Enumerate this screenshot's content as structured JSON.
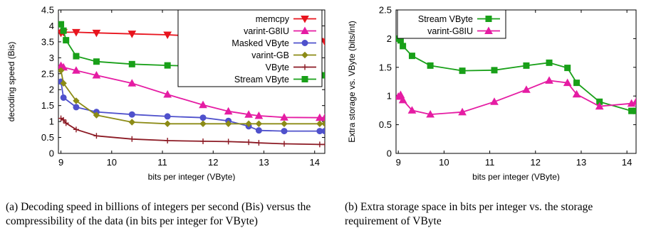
{
  "chart_data": [
    {
      "type": "line",
      "xlabel": "bits per integer (VByte)",
      "ylabel": "decoding speed (Bis)",
      "xlim": [
        8.95,
        14.2
      ],
      "ylim": [
        0,
        4.5
      ],
      "x_ticks": [
        "9",
        "10",
        "11",
        "12",
        "13",
        "14"
      ],
      "y_ticks": [
        "0",
        "0.5",
        "1",
        "1.5",
        "2",
        "2.5",
        "3",
        "3.5",
        "4",
        "4.5"
      ],
      "grid": false,
      "legend_position": "top-right",
      "series": [
        {
          "name": "memcpy",
          "color": "#e8141e",
          "marker": "triangle-down",
          "points": [
            [
              9.0,
              3.78
            ],
            [
              9.05,
              3.8
            ],
            [
              9.3,
              3.8
            ],
            [
              9.7,
              3.78
            ],
            [
              10.4,
              3.75
            ],
            [
              11.1,
              3.72
            ],
            [
              11.8,
              3.67
            ],
            [
              12.3,
              3.65
            ],
            [
              12.7,
              3.62
            ],
            [
              12.9,
              3.6
            ],
            [
              13.4,
              3.57
            ],
            [
              14.1,
              3.52
            ],
            [
              14.2,
              3.5
            ]
          ]
        },
        {
          "name": "varint-G8IU",
          "color": "#e51ca3",
          "marker": "triangle-up",
          "points": [
            [
              9.0,
              2.75
            ],
            [
              9.05,
              2.7
            ],
            [
              9.3,
              2.6
            ],
            [
              9.7,
              2.45
            ],
            [
              10.4,
              2.2
            ],
            [
              11.1,
              1.85
            ],
            [
              11.8,
              1.52
            ],
            [
              12.3,
              1.32
            ],
            [
              12.7,
              1.22
            ],
            [
              12.9,
              1.18
            ],
            [
              13.4,
              1.13
            ],
            [
              14.1,
              1.12
            ],
            [
              14.2,
              1.12
            ]
          ]
        },
        {
          "name": "Masked VByte",
          "color": "#4f51cc",
          "marker": "circle",
          "points": [
            [
              9.0,
              2.25
            ],
            [
              9.05,
              1.75
            ],
            [
              9.3,
              1.45
            ],
            [
              9.7,
              1.3
            ],
            [
              10.4,
              1.22
            ],
            [
              11.1,
              1.16
            ],
            [
              11.8,
              1.12
            ],
            [
              12.3,
              1.02
            ],
            [
              12.7,
              0.85
            ],
            [
              12.9,
              0.72
            ],
            [
              13.4,
              0.7
            ],
            [
              14.1,
              0.7
            ],
            [
              14.2,
              0.7
            ]
          ]
        },
        {
          "name": "varint-GB",
          "color": "#8c8b16",
          "marker": "diamond",
          "points": [
            [
              9.0,
              2.6
            ],
            [
              9.05,
              2.2
            ],
            [
              9.3,
              1.65
            ],
            [
              9.7,
              1.2
            ],
            [
              10.4,
              0.98
            ],
            [
              11.1,
              0.93
            ],
            [
              11.8,
              0.93
            ],
            [
              12.3,
              0.93
            ],
            [
              12.7,
              0.93
            ],
            [
              12.9,
              0.93
            ],
            [
              13.4,
              0.93
            ],
            [
              14.1,
              0.93
            ],
            [
              14.2,
              0.93
            ]
          ]
        },
        {
          "name": "VByte",
          "color": "#8c1a24",
          "marker": "plus",
          "points": [
            [
              9.0,
              1.1
            ],
            [
              9.05,
              1.05
            ],
            [
              9.1,
              0.95
            ],
            [
              9.3,
              0.75
            ],
            [
              9.7,
              0.55
            ],
            [
              10.4,
              0.45
            ],
            [
              11.1,
              0.4
            ],
            [
              11.8,
              0.38
            ],
            [
              12.3,
              0.37
            ],
            [
              12.7,
              0.35
            ],
            [
              12.9,
              0.33
            ],
            [
              13.4,
              0.3
            ],
            [
              14.1,
              0.28
            ],
            [
              14.2,
              0.28
            ]
          ]
        },
        {
          "name": "Stream VByte",
          "color": "#19a019",
          "marker": "square",
          "points": [
            [
              9.0,
              4.05
            ],
            [
              9.05,
              3.85
            ],
            [
              9.1,
              3.55
            ],
            [
              9.3,
              3.05
            ],
            [
              9.7,
              2.88
            ],
            [
              10.4,
              2.8
            ],
            [
              11.1,
              2.76
            ],
            [
              11.8,
              2.73
            ],
            [
              12.3,
              2.73
            ],
            [
              12.7,
              2.7
            ],
            [
              12.9,
              2.62
            ],
            [
              13.4,
              2.52
            ],
            [
              14.1,
              2.45
            ],
            [
              14.2,
              2.45
            ]
          ]
        }
      ]
    },
    {
      "type": "line",
      "xlabel": "bits per integer (VByte)",
      "ylabel": "Extra storage vs. VByte  (bits/int)",
      "xlim": [
        8.95,
        14.2
      ],
      "ylim": [
        0,
        2.5
      ],
      "x_ticks": [
        "9",
        "10",
        "11",
        "12",
        "13",
        "14"
      ],
      "y_ticks": [
        "0",
        "0.5",
        "1",
        "1.5",
        "2",
        "2.5"
      ],
      "grid": false,
      "legend_position": "top-left",
      "series": [
        {
          "name": "Stream VByte",
          "color": "#19a019",
          "marker": "square",
          "points": [
            [
              9.0,
              2.0
            ],
            [
              9.05,
              1.97
            ],
            [
              9.1,
              1.87
            ],
            [
              9.3,
              1.7
            ],
            [
              9.7,
              1.53
            ],
            [
              10.4,
              1.44
            ],
            [
              11.1,
              1.45
            ],
            [
              11.8,
              1.53
            ],
            [
              12.3,
              1.58
            ],
            [
              12.7,
              1.49
            ],
            [
              12.9,
              1.23
            ],
            [
              13.4,
              0.9
            ],
            [
              14.1,
              0.74
            ],
            [
              14.2,
              0.74
            ]
          ]
        },
        {
          "name": "varint-G8IU",
          "color": "#e51ca3",
          "marker": "triangle-up",
          "points": [
            [
              9.0,
              0.99
            ],
            [
              9.05,
              1.02
            ],
            [
              9.1,
              0.93
            ],
            [
              9.3,
              0.75
            ],
            [
              9.7,
              0.68
            ],
            [
              10.4,
              0.72
            ],
            [
              11.1,
              0.9
            ],
            [
              11.8,
              1.11
            ],
            [
              12.3,
              1.27
            ],
            [
              12.7,
              1.23
            ],
            [
              12.9,
              1.03
            ],
            [
              13.4,
              0.82
            ],
            [
              14.1,
              0.87
            ],
            [
              14.2,
              0.9
            ]
          ]
        }
      ]
    }
  ],
  "captions": {
    "a": "(a) Decoding speed in billions of integers per second (Bis) versus the compressibility of the data (in bits per integer for VByte)",
    "b": "(b) Extra storage space in bits per integer vs. the storage requirement of VByte"
  }
}
